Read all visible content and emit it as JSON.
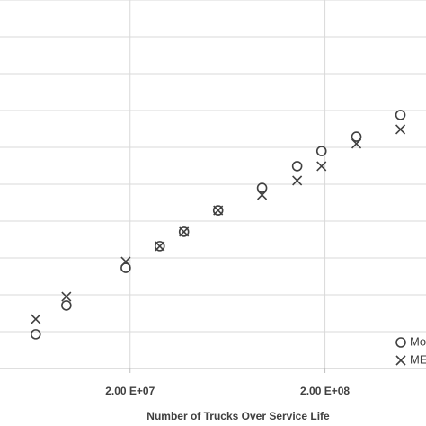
{
  "chart_data": {
    "type": "scatter",
    "x_label": "Number of Trucks Over Service Life",
    "x_log": true,
    "xlim": [
      4300000,
      660000000
    ],
    "xticks": [
      {
        "value": 20000000,
        "label": "2.00 E+07"
      },
      {
        "value": 200000000,
        "label": "2.00 E+08"
      }
    ],
    "ylim": [
      0,
      10
    ],
    "grid": true,
    "legend": "bottom-right",
    "x": [
      6560000,
      9420000,
      19000000,
      28400000,
      37800000,
      56600000,
      95100000,
      144000000,
      192000000,
      290000000,
      488000000
    ],
    "series": [
      {
        "name": "Mo",
        "marker": "circle",
        "color": "#404040",
        "values": [
          0.93,
          1.71,
          2.73,
          3.32,
          3.71,
          4.29,
          4.9,
          5.49,
          5.9,
          6.29,
          6.88
        ]
      },
      {
        "name": "ME",
        "marker": "x",
        "color": "#404040",
        "values": [
          1.34,
          1.95,
          2.9,
          3.32,
          3.71,
          4.29,
          4.71,
          5.1,
          5.49,
          6.1,
          6.49
        ]
      }
    ]
  }
}
